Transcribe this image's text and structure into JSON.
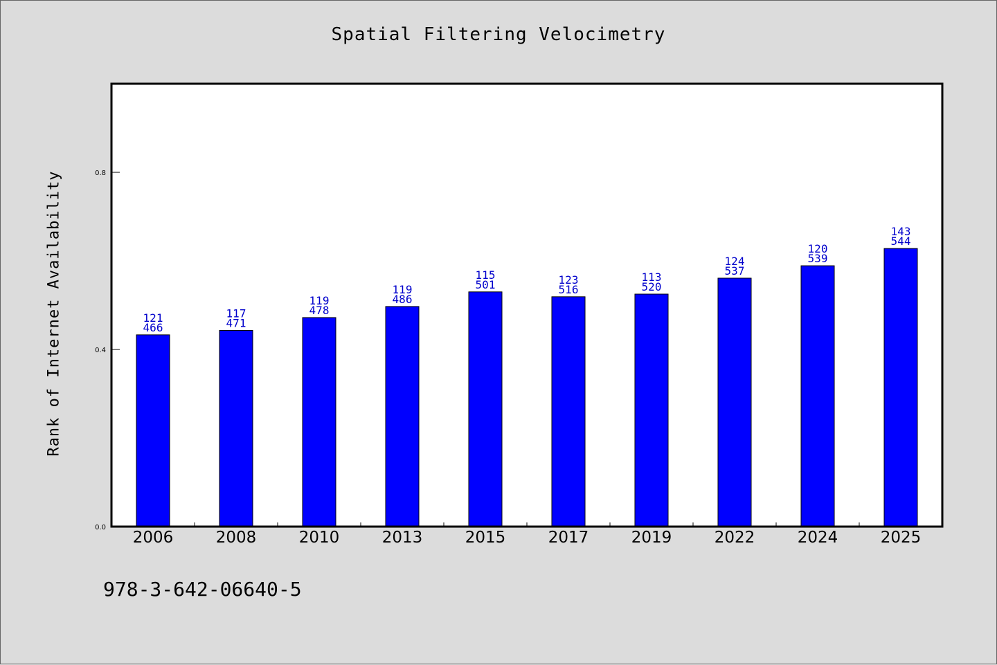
{
  "page": {
    "footnote": "978-3-642-06640-5"
  },
  "chart_data": {
    "type": "bar",
    "title": "Spatial Filtering Velocimetry",
    "xlabel": "",
    "ylabel": "Rank of Internet Availability",
    "categories": [
      "2006",
      "2008",
      "2010",
      "2013",
      "2015",
      "2017",
      "2019",
      "2022",
      "2024",
      "2025"
    ],
    "series": [
      {
        "values": [
          0.433,
          0.443,
          0.472,
          0.497,
          0.53,
          0.519,
          0.525,
          0.561,
          0.589,
          0.628
        ]
      }
    ],
    "data_labels": [
      [
        "121",
        "466"
      ],
      [
        "117",
        "471"
      ],
      [
        "119",
        "478"
      ],
      [
        "119",
        "486"
      ],
      [
        "115",
        "501"
      ],
      [
        "123",
        "516"
      ],
      [
        "113",
        "520"
      ],
      [
        "124",
        "537"
      ],
      [
        "120",
        "539"
      ],
      [
        "143",
        "544"
      ]
    ],
    "ylim": [
      0,
      1.0
    ],
    "yticks": [
      "0.0",
      "0.4",
      "0.8"
    ],
    "grid": false,
    "colors": {
      "bar": "#0000ff",
      "data_label": "#0000cc",
      "background": "#dcdcdc",
      "plot_area": "#ffffff"
    }
  }
}
